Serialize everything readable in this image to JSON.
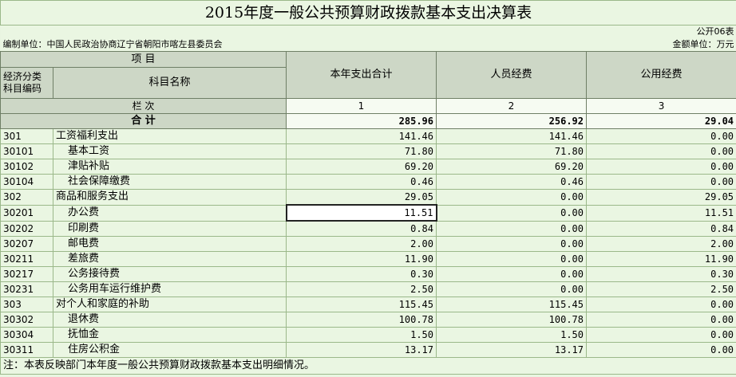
{
  "title": "2015年度一般公共预算财政拨款基本支出决算表",
  "table_no": "公开06表",
  "unit_left": "编制单位：中国人民政治协商辽宁省朝阳市喀左县委员会",
  "unit_right": "金额单位：万元",
  "headers": {
    "item": "项    目",
    "code": "经济分类科目编码",
    "name": "科目名称",
    "total": "本年支出合计",
    "personnel": "人员经费",
    "public": "公用经费",
    "col_label": "栏    次",
    "col1": "1",
    "col2": "2",
    "col3": "3",
    "sum_label": "合    计"
  },
  "totals": {
    "total": "285.96",
    "personnel": "256.92",
    "public": "29.04"
  },
  "rows": [
    {
      "code": "301",
      "name": "工资福利支出",
      "total": "141.46",
      "personnel": "141.46",
      "public": "0.00"
    },
    {
      "code": "30101",
      "name": "基本工资",
      "total": "71.80",
      "personnel": "71.80",
      "public": "0.00"
    },
    {
      "code": "30102",
      "name": "津贴补贴",
      "total": "69.20",
      "personnel": "69.20",
      "public": "0.00"
    },
    {
      "code": "30104",
      "name": "社会保障缴费",
      "total": "0.46",
      "personnel": "0.46",
      "public": "0.00"
    },
    {
      "code": "302",
      "name": "商品和服务支出",
      "total": "29.05",
      "personnel": "0.00",
      "public": "29.05"
    },
    {
      "code": "30201",
      "name": "办公费",
      "total": "11.51",
      "personnel": "0.00",
      "public": "11.51"
    },
    {
      "code": "30202",
      "name": "印刷费",
      "total": "0.84",
      "personnel": "0.00",
      "public": "0.84"
    },
    {
      "code": "30207",
      "name": "邮电费",
      "total": "2.00",
      "personnel": "0.00",
      "public": "2.00"
    },
    {
      "code": "30211",
      "name": "差旅费",
      "total": "11.90",
      "personnel": "0.00",
      "public": "11.90"
    },
    {
      "code": "30217",
      "name": "公务接待费",
      "total": "0.30",
      "personnel": "0.00",
      "public": "0.30"
    },
    {
      "code": "30231",
      "name": "公务用车运行维护费",
      "total": "2.50",
      "personnel": "0.00",
      "public": "2.50"
    },
    {
      "code": "303",
      "name": "对个人和家庭的补助",
      "total": "115.45",
      "personnel": "115.45",
      "public": "0.00"
    },
    {
      "code": "30302",
      "name": "退休费",
      "total": "100.78",
      "personnel": "100.78",
      "public": "0.00"
    },
    {
      "code": "30304",
      "name": "抚恤金",
      "total": "1.50",
      "personnel": "1.50",
      "public": "0.00"
    },
    {
      "code": "30311",
      "name": "住房公积金",
      "total": "13.17",
      "personnel": "13.17",
      "public": "0.00"
    }
  ],
  "note": "注：本表反映部门本年度一般公共预算财政拨款基本支出明细情况。"
}
